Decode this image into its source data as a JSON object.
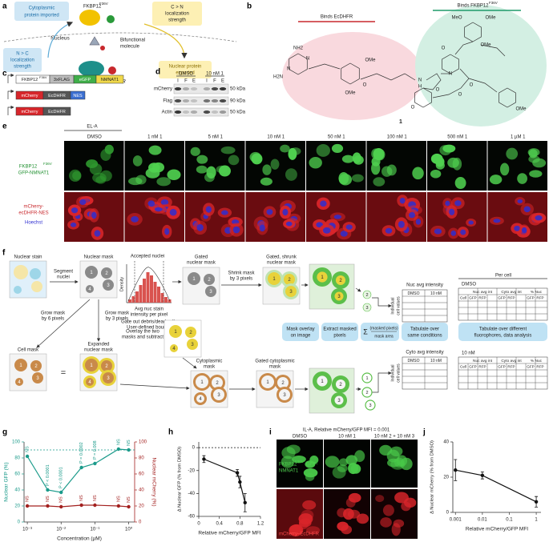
{
  "figure": {
    "a": [
      "a",
      "Cytoplasmic",
      "protein imported",
      "FKBP12",
      "F36V",
      "C > N",
      "localization",
      "strength",
      "Nucleus",
      "Bifunctional",
      "molecule",
      "N > C",
      "localization",
      "strength",
      "EcDHFR",
      "Nuclear protein",
      "exported"
    ],
    "b": [
      "b",
      "Binds EcDHFR",
      "Binds FKBP12",
      "F36V",
      "H2N",
      "NH2",
      "N",
      "N",
      "OMe",
      "OMe",
      "O",
      "N",
      "H",
      "O",
      "O",
      "O",
      "N",
      "O",
      "O",
      "MeO",
      "OMe",
      "OMe",
      "OMe",
      "1"
    ],
    "c": [
      "c",
      "FKBP12",
      "F36V",
      "3xFLAG",
      "eGFP",
      "NMNAT1",
      "mCherry",
      "EcDHFR",
      "NES",
      "mCherry",
      "EcDHFR"
    ],
    "d": [
      "d",
      "DMSO",
      "10 nM 1",
      "I",
      "F",
      "E",
      "I",
      "F",
      "E",
      "mCherry",
      "Flag",
      "Actin",
      "50 kDa",
      "90 kDa",
      "50 kDa"
    ],
    "e": [
      "e",
      "EL-A",
      "DMSO",
      "1 nM 1",
      "5 nM 1",
      "10 nM 1",
      "50 nM 1",
      "100 nM 1",
      "500 nM 1",
      "1 µM 1",
      "FKBP12",
      "F36V",
      "GFP-NMNAT1",
      "mCherry-",
      "ecDHFR-NES",
      "Hoechst"
    ],
    "f": [
      "f",
      "Nuclear stain",
      "Segment",
      "nuclei",
      "Nuclear mask",
      "Accepted nuclei",
      "Density",
      "Avg nuc stain",
      "intensity per pixel",
      "Gate out debris/dead cells",
      "User-defined bounds",
      "Gated",
      "nuclear mask",
      "Shrink mask",
      "by 3 pixels",
      "Gated, shrunk",
      "nuclear mask",
      "Grow mask",
      "by 6 pixels",
      "Grow mask",
      "by 3 pixels",
      "Overlay the two",
      "masks and subtract",
      "Cell mask",
      "=",
      "Expanded",
      "nuclear mask",
      "Cytoplasmic",
      "mask",
      "Gated cytoplasmic",
      "mask",
      "Mask overlay",
      "on image",
      "Extract masked",
      "pixels",
      "Σ",
      "(masked pixels)",
      "mask area",
      "Tabulate over",
      "same conditions",
      "Nuc avg intensity",
      "Cyto avg intensity",
      "DMSO",
      "10 nM",
      "Individual",
      "cell values",
      "Per cell",
      "DMSO",
      "10 nM",
      "Tabulate over different",
      "fluorophores, data analysis",
      "Nuc avg int",
      "Cyto avg int",
      "% Nuc",
      "Cell",
      "GFP",
      "RFP",
      "1",
      "2",
      "3",
      "4"
    ],
    "i": [
      "i",
      "IL-A, Relative mCherry/GFP MFI = 0.001",
      "DMSO",
      "10 nM 1",
      "10 nM 2 + 10 nM 3",
      "FKBP12",
      "F36V",
      "-GFP-",
      "NMNAT1",
      "mCherry–EcDHFR"
    ]
  },
  "chart_data": [
    {
      "type": "line",
      "label": "g",
      "xlog": true,
      "x": [
        0.001,
        0.004,
        0.01,
        0.04,
        0.1,
        0.5,
        1
      ],
      "xlim": [
        0.0008,
        1.5
      ],
      "xticks": [
        {
          "value": 0.001,
          "label": "10⁻³"
        },
        {
          "value": 0.01,
          "label": "10⁻²"
        },
        {
          "value": 0.1,
          "label": "10⁻¹"
        },
        {
          "value": 1,
          "label": "10⁰"
        }
      ],
      "x_label": "Concentration (µM)",
      "ylim": [
        0,
        100
      ],
      "yticks": [
        0,
        20,
        40,
        60,
        80,
        100
      ],
      "y2lim": [
        0,
        100
      ],
      "y2ticks": [
        0,
        20,
        40,
        60,
        80,
        100
      ],
      "reference_line": 90,
      "series": [
        {
          "name": "Nuclear GFP (%)",
          "color": "#1a9a8a",
          "values": [
            82,
            40,
            37,
            68,
            73,
            91,
            90
          ],
          "annotations": [
            "NS",
            "P < 0.0001",
            "P < 0.0001",
            "P = 0.0002",
            "P = 0.008",
            "NS",
            "NS"
          ]
        },
        {
          "name": "Nuclear mCherry (%)",
          "color": "#a3201f",
          "axis": "y2",
          "values": [
            20,
            20,
            19,
            21,
            21,
            20,
            19
          ],
          "annotations": [
            "NS",
            "NS",
            "NS",
            "NS",
            "NS",
            "NS",
            "NS"
          ]
        }
      ]
    },
    {
      "type": "line",
      "label": "h",
      "x": [
        0.1,
        0.75,
        0.8,
        0.9
      ],
      "values": [
        -10,
        -22,
        -30,
        -48
      ],
      "errors": [
        3,
        3,
        5,
        8
      ],
      "color": "#111111",
      "xlim": [
        0,
        1.2
      ],
      "xticks": [
        0,
        0.4,
        0.8,
        1.2
      ],
      "ylim": [
        -60,
        5
      ],
      "yticks": [
        0,
        -20,
        -40,
        -60
      ],
      "reference_line": 0,
      "x_label": "Relative mCherry/GFP MFI",
      "y_label": "Δ Nuclear GFP (% from DMSO)"
    },
    {
      "type": "line",
      "label": "j",
      "xlog": true,
      "x": [
        0.001,
        0.01,
        1
      ],
      "values": [
        24,
        21,
        6
      ],
      "errors": [
        6,
        2,
        3
      ],
      "color": "#111111",
      "xlim": [
        0.0008,
        1.5
      ],
      "xticks": [
        0.001,
        0.01,
        0.1,
        1
      ],
      "ylim": [
        0,
        40
      ],
      "yticks": [
        0,
        20,
        40
      ],
      "x_label": "Relative mCherry/GFP MFI",
      "y_label": "Δ Nuclear mCherry (% from DMSO)"
    }
  ]
}
